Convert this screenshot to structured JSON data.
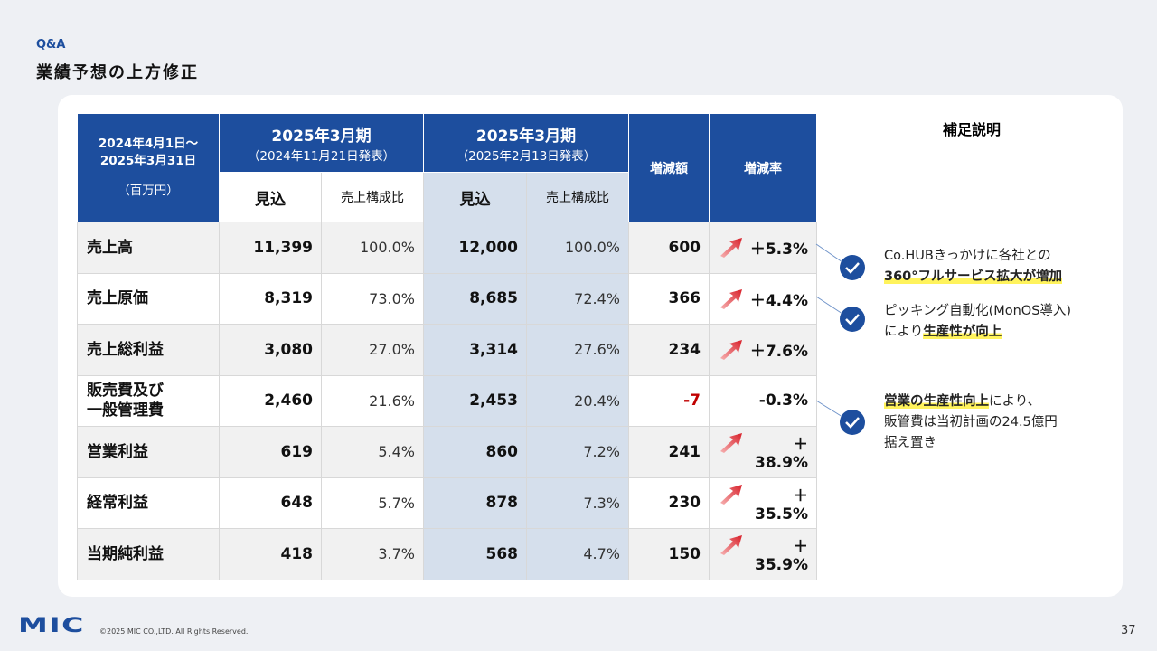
{
  "header": {
    "section": "Q&A",
    "title": "業績予想の上方修正"
  },
  "table": {
    "period": [
      "2024年4月1日～",
      "2025年3月31日"
    ],
    "unit": "（百万円）",
    "groups": [
      {
        "title": "2025年3月期",
        "sub": "（2024年11月21日発表）"
      },
      {
        "title": "2025年3月期",
        "sub": "（2025年2月13日発表）"
      }
    ],
    "subheaders": [
      "見込",
      "売上構成比",
      "見込",
      "売上構成比"
    ],
    "diff": "増減額",
    "rate": "増減率",
    "rows": [
      [
        [
          "売上高"
        ],
        "11,399",
        "100.0%",
        "12,000",
        "100.0%",
        "600",
        "＋5.3%"
      ],
      [
        [
          "売上原価"
        ],
        "8,319",
        "73.0%",
        "8,685",
        "72.4%",
        "366",
        "＋4.4%"
      ],
      [
        [
          "売上総利益"
        ],
        "3,080",
        "27.0%",
        "3,314",
        "27.6%",
        "234",
        "＋7.6%"
      ],
      [
        [
          "販売費及び",
          "一般管理費"
        ],
        "2,460",
        "21.6%",
        "2,453",
        "20.4%",
        "-7",
        "-0.3%"
      ],
      [
        [
          "営業利益"
        ],
        "619",
        "5.4%",
        "860",
        "7.2%",
        "241",
        "＋38.9%"
      ],
      [
        [
          "経常利益"
        ],
        "648",
        "5.7%",
        "878",
        "7.3%",
        "230",
        "＋35.5%"
      ],
      [
        [
          "当期純利益"
        ],
        "418",
        "3.7%",
        "568",
        "4.7%",
        "150",
        "＋35.9%"
      ]
    ]
  },
  "notes": {
    "title": "補足説明",
    "items": [
      [
        [
          {
            "text": "Co.HUBきっかけに各社との",
            "highlight": false
          }
        ],
        [
          {
            "text": "360°フルサービス拡大が増加",
            "highlight": true
          }
        ]
      ],
      [
        [
          {
            "text": "ピッキング自動化(MonOS導入)",
            "highlight": false
          }
        ],
        [
          {
            "text": "により",
            "highlight": false
          },
          {
            "text": "生産性が向上",
            "highlight": true
          }
        ]
      ],
      [
        [
          {
            "text": "営業の生産性向上",
            "highlight": true
          },
          {
            "text": "により、",
            "highlight": false
          }
        ],
        [
          {
            "text": "販管費は当初計画の24.5億円",
            "highlight": false
          }
        ],
        [
          {
            "text": "据え置き",
            "highlight": false
          }
        ]
      ]
    ]
  },
  "footer": {
    "logo": "MIC",
    "copyright": "©2025 MIC CO.,LTD. All Rights Reserved.",
    "page": "37"
  }
}
